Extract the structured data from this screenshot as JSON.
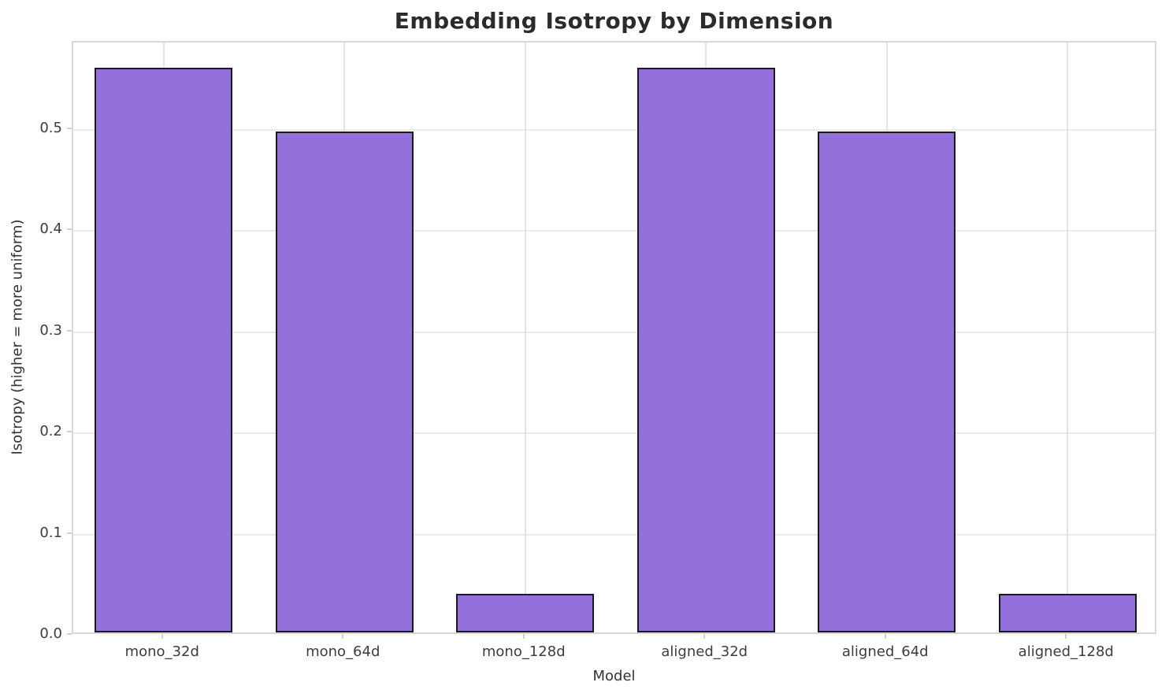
{
  "chart_data": {
    "type": "bar",
    "title": "Embedding Isotropy by Dimension",
    "xlabel": "Model",
    "ylabel": "Isotropy (higher = more uniform)",
    "categories": [
      "mono_32d",
      "mono_64d",
      "mono_128d",
      "aligned_32d",
      "aligned_64d",
      "aligned_128d"
    ],
    "values": [
      0.558,
      0.495,
      0.038,
      0.558,
      0.495,
      0.038
    ],
    "ytick_values": [
      0.0,
      0.1,
      0.2,
      0.3,
      0.4,
      0.5
    ],
    "ytick_labels": [
      "0.0",
      "0.1",
      "0.2",
      "0.3",
      "0.4",
      "0.5"
    ],
    "ylim": [
      0,
      0.586
    ],
    "grid": true,
    "legend": "none",
    "colors": {
      "bar_fill": "#9370DB",
      "bar_edge": "#1a1a1a",
      "grid_h": "#ebebeb",
      "grid_v": "#e4e4e4",
      "spine": "#d8d8d8",
      "title_text": "#2b2b2b",
      "tick_text": "#3d3d3d"
    }
  }
}
